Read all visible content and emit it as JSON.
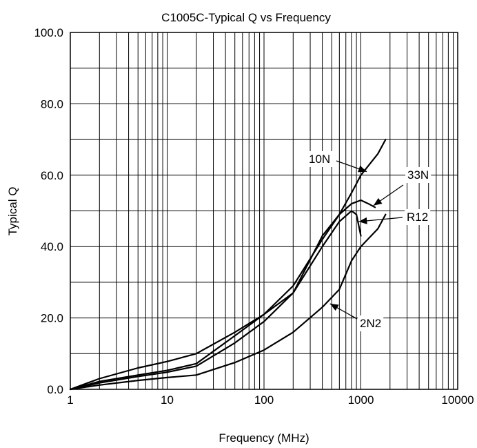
{
  "chart_data": {
    "type": "line",
    "title": "C1005C-Typical Q vs Frequency",
    "xlabel": "Frequency (MHz)",
    "ylabel": "Typical Q",
    "x_scale": "log",
    "xlim": [
      1,
      10000
    ],
    "ylim": [
      0,
      100
    ],
    "x_ticks": [
      1,
      10,
      100,
      1000,
      10000
    ],
    "x_tick_labels": [
      "1",
      "10",
      "100",
      "1000",
      "10000"
    ],
    "y_ticks": [
      0,
      20,
      40,
      60,
      80,
      100
    ],
    "y_tick_labels": [
      "0.0",
      "20.0",
      "40.0",
      "60.0",
      "80.0",
      "100.0"
    ],
    "grid": true,
    "series": [
      {
        "name": "2N2",
        "x": [
          1,
          2,
          5,
          10,
          20,
          50,
          100,
          200,
          400,
          600,
          800,
          1000,
          1500,
          1800
        ],
        "y": [
          0,
          1.2,
          2.5,
          3.3,
          4.0,
          7.5,
          11,
          16,
          23,
          28,
          36,
          40,
          45,
          49
        ]
      },
      {
        "name": "10N",
        "x": [
          1,
          2,
          5,
          10,
          20,
          50,
          100,
          200,
          400,
          600,
          800,
          1000,
          1500,
          1800
        ],
        "y": [
          0,
          1.8,
          3.6,
          4.8,
          6.5,
          13,
          19,
          27,
          43,
          49,
          55,
          60,
          66,
          70
        ]
      },
      {
        "name": "33N",
        "x": [
          1,
          2,
          5,
          10,
          20,
          50,
          100,
          200,
          400,
          600,
          800,
          1000,
          1200,
          1400
        ],
        "y": [
          0,
          2.2,
          4,
          5.3,
          7.2,
          15,
          21,
          29,
          42,
          49,
          52,
          53,
          52,
          51
        ]
      },
      {
        "name": "R12",
        "x": [
          1,
          2,
          5,
          10,
          20,
          50,
          100,
          200,
          400,
          600,
          800,
          900,
          1000
        ],
        "y": [
          0,
          3,
          6,
          7.8,
          10,
          16,
          21,
          27,
          40,
          47,
          50,
          49,
          43
        ]
      }
    ],
    "annotations": [
      {
        "text": "10N",
        "target_x": 1150,
        "target_y": 61
      },
      {
        "text": "33N",
        "target_x": 1350,
        "target_y": 51.5
      },
      {
        "text": "R12",
        "target_x": 950,
        "target_y": 47
      },
      {
        "text": "2N2",
        "target_x": 480,
        "target_y": 24
      }
    ]
  }
}
